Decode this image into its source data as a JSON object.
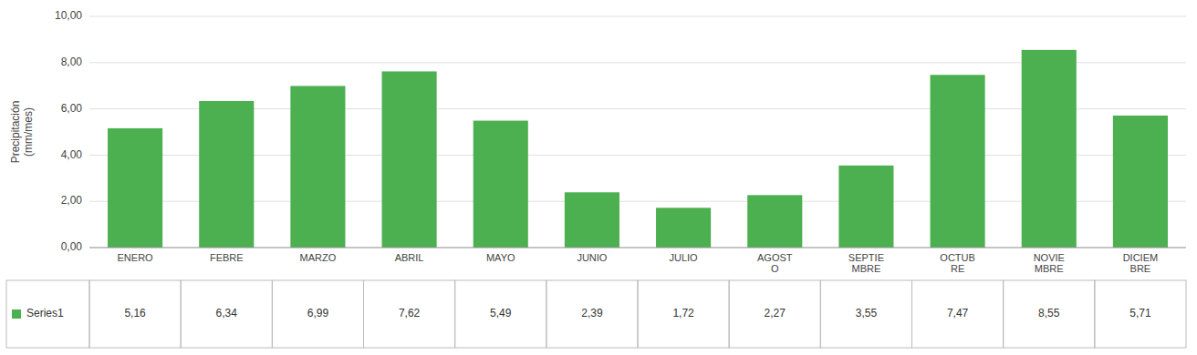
{
  "chart_data": {
    "type": "bar",
    "categories": [
      "ENERO",
      "FEBRE",
      "MARZO",
      "ABRIL",
      "MAYO",
      "JUNIO",
      "JULIO",
      "AGOST\nO",
      "SEPTIE\nMBRE",
      "OCTUB\nRE",
      "NOVIE\nMBRE",
      "DICIEM\nBRE"
    ],
    "series": [
      {
        "name": "Series1",
        "color": "#4CAF50",
        "values": [
          5.16,
          6.34,
          6.99,
          7.62,
          5.49,
          2.39,
          1.72,
          2.27,
          3.55,
          7.47,
          8.55,
          5.71
        ],
        "value_labels": [
          "5,16",
          "6,34",
          "6,99",
          "7,62",
          "5,49",
          "2,39",
          "1,72",
          "2,27",
          "3,55",
          "7,47",
          "8,55",
          "5,71"
        ]
      }
    ],
    "ylabel": "Precipitación\n(mm/mes)",
    "ylim": [
      0,
      10
    ],
    "yticks": [
      {
        "value": 0,
        "label": "0,00"
      },
      {
        "value": 2,
        "label": "2,00"
      },
      {
        "value": 4,
        "label": "4,00"
      },
      {
        "value": 6,
        "label": "6,00"
      },
      {
        "value": 8,
        "label": "8,00"
      },
      {
        "value": 10,
        "label": "10,00"
      }
    ],
    "grid": true
  }
}
